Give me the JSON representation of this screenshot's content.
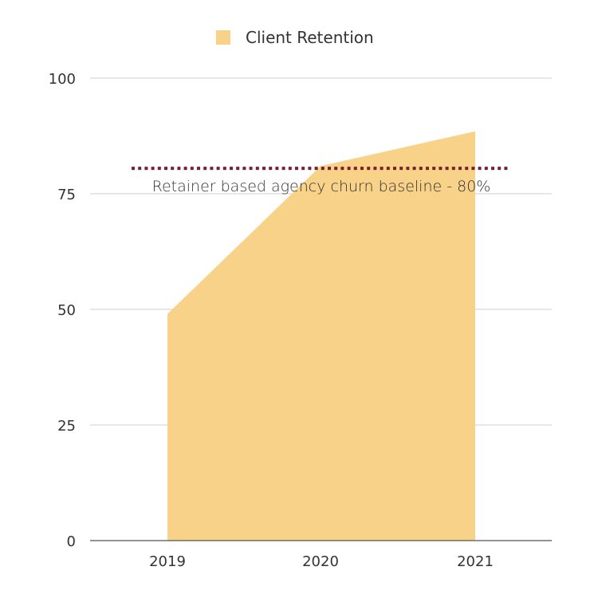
{
  "chart_data": {
    "type": "area",
    "categories": [
      "2019",
      "2020",
      "2021"
    ],
    "series": [
      {
        "name": "Client Retention",
        "values": [
          49,
          81,
          88.5
        ],
        "color": "#f8d289"
      }
    ],
    "ylim": [
      0,
      100
    ],
    "yticks": [
      0,
      25,
      50,
      75,
      100
    ],
    "grid": true,
    "legend_position": "top-center",
    "annotations": [
      {
        "label": "Retainer based agency churn baseline - 80%",
        "y": 80.5,
        "color": "#7a1f2e",
        "style": "dotted"
      }
    ],
    "title": "",
    "xlabel": "",
    "ylabel": ""
  }
}
